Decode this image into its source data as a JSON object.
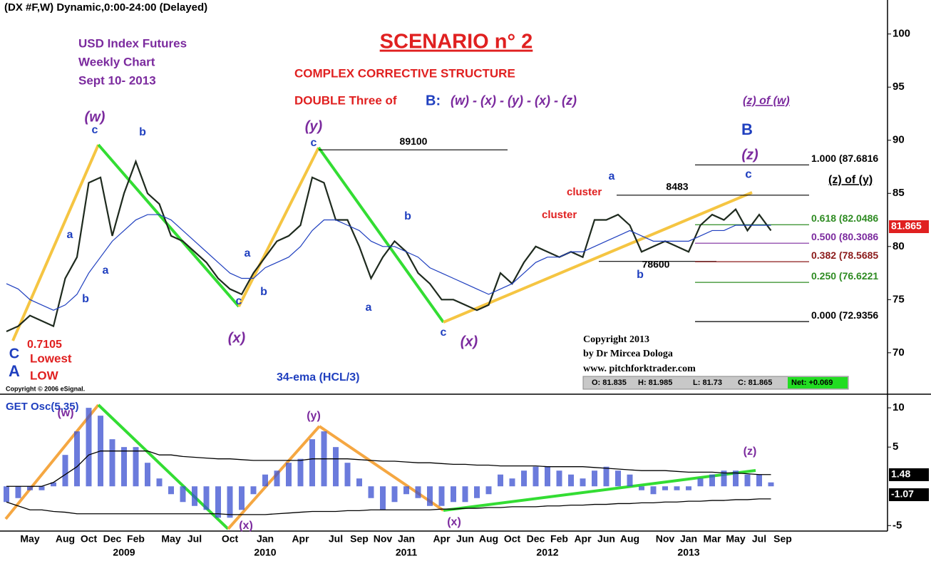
{
  "header": "(DX #F,W) Dynamic,0:00-24:00 (Delayed)",
  "copyright": "Copyright © 2006 eSignal.",
  "chart_data": [
    {
      "type": "line",
      "title": "SCENARIO n° 2",
      "categories": [
        null,
        null,
        "May",
        null,
        null,
        "Aug",
        null,
        "Oct",
        null,
        "Dec",
        null,
        "Feb",
        null,
        null,
        "May",
        null,
        "Jul",
        null,
        null,
        "Oct",
        null,
        null,
        "Jan",
        null,
        null,
        "Apr",
        null,
        null,
        "Jul",
        null,
        "Sep",
        null,
        "Nov",
        null,
        "Jan",
        null,
        null,
        "Apr",
        null,
        "Jun",
        null,
        "Aug",
        null,
        "Oct",
        null,
        "Dec",
        null,
        "Feb",
        null,
        "Apr",
        null,
        "Jun",
        null,
        "Aug",
        null,
        null,
        "Nov",
        null,
        "Jan",
        null,
        "Mar",
        null,
        "May",
        null,
        "Jul",
        null,
        "Sep"
      ],
      "category_groups": [
        null,
        null,
        null,
        null,
        null,
        null,
        null,
        null,
        null,
        null,
        "2009",
        null,
        null,
        null,
        null,
        null,
        null,
        null,
        null,
        null,
        null,
        null,
        "2010",
        null,
        null,
        null,
        null,
        null,
        null,
        null,
        null,
        null,
        null,
        null,
        "2011",
        null,
        null,
        null,
        null,
        null,
        null,
        null,
        null,
        null,
        null,
        null,
        "2012",
        null,
        null,
        null,
        null,
        null,
        null,
        null,
        null,
        null,
        null,
        null,
        "2013",
        null,
        null,
        null,
        null,
        null,
        null,
        null,
        null
      ],
      "series": [
        {
          "color": "#1e2a1e",
          "values": [
            72,
            72.5,
            73.5,
            73,
            72.5,
            77,
            79,
            86,
            86.5,
            81,
            85,
            88,
            85,
            84,
            81,
            80.5,
            79.5,
            78.5,
            77,
            76,
            75.5,
            77.5,
            79,
            80.5,
            81,
            82,
            86.5,
            86,
            82.5,
            82.5,
            80,
            77,
            79,
            80.5,
            79.5,
            77.5,
            76.5,
            75,
            75,
            74.5,
            74,
            74.5,
            77.5,
            76.5,
            78.5,
            80,
            79.5,
            79,
            79.5,
            79,
            82.5,
            82.5,
            83,
            82,
            79.5,
            80,
            80.5,
            80,
            79.5,
            82,
            83,
            82.5,
            83.5,
            81.5,
            83,
            81.5,
            null
          ]
        },
        {
          "name": "34-ema (HCL/3)",
          "color": "#1f3fbf",
          "values": [
            76.5,
            76,
            75,
            74.5,
            74,
            74.5,
            75.5,
            77.5,
            79,
            80.5,
            81.5,
            82.5,
            83,
            83,
            82.5,
            81.5,
            80.5,
            79.5,
            78.5,
            77.5,
            77,
            77,
            78,
            78.5,
            79,
            80,
            81.5,
            82.5,
            82.5,
            82,
            81.5,
            80.5,
            80,
            80,
            79.5,
            79,
            78,
            77.5,
            77,
            76.5,
            76,
            75.5,
            76,
            76.5,
            77.5,
            78.5,
            79,
            79,
            79.5,
            79.5,
            80,
            80.5,
            81,
            81.5,
            81,
            80.5,
            80.5,
            80.5,
            80.5,
            81,
            81.5,
            81.5,
            82,
            82,
            82,
            82,
            null
          ]
        }
      ],
      "ylim": [
        66.3,
        103.2
      ],
      "yticks": [
        100,
        95,
        90,
        85,
        80,
        75,
        70
      ],
      "last_value": 81.865,
      "levels": [
        {
          "value": 89.1,
          "label": "89100",
          "color": "#000000"
        },
        {
          "value": 84.83,
          "label": "8483",
          "color": "#000000"
        },
        {
          "value": 78.6,
          "label": "78600",
          "color": "#000000"
        }
      ],
      "fib_levels": [
        {
          "value": 87.6816,
          "label": "1.000 (87.6816",
          "color": "#000000"
        },
        {
          "value": 82.0486,
          "label": "0.618 (82.0486",
          "color": "#2e8b22"
        },
        {
          "value": 80.3086,
          "label": "0.500 (80.3086",
          "color": "#7b2a9e"
        },
        {
          "value": 78.5685,
          "label": "0.382 (78.5685",
          "color": "#8b1a1a"
        },
        {
          "value": 76.6221,
          "label": "0.250 (76.6221",
          "color": "#2e8b22"
        },
        {
          "value": 72.9356,
          "label": "0.000 (72.9356",
          "color": "#000000"
        }
      ],
      "ohlc": [
        "O: 81.835",
        "H: 81.985",
        "L: 81.73",
        "C: 81.865"
      ],
      "net": "Net: +0.069",
      "annotations": [
        "USD Index Futures",
        "Weekly Chart",
        "Sept 10- 2013",
        "COMPLEX CORRECTIVE STRUCTURE",
        "DOUBLE Three of",
        "B:",
        "(w) - (x) - (y) - (x) - (z)",
        "(z) of (w)",
        "B",
        "(z)",
        "c",
        "(z) of (y)",
        "cluster",
        "cluster",
        "a",
        "(w)",
        "c",
        "b",
        "a",
        "a",
        "b",
        "C",
        "A",
        "0.7105",
        "Lowest",
        "LOW",
        "(y)",
        "c",
        "a",
        "b",
        "c",
        "(x)",
        "b",
        "a",
        "c",
        "(x)",
        "b",
        "Copyright 2013",
        "by Dr Mircea Dologa",
        "www. pitchforktrader.com"
      ]
    },
    {
      "type": "bar",
      "title": "GET Osc(5,35)",
      "series": [
        {
          "color": "#3a4fd0",
          "values": [
            -2,
            -1.5,
            -0.5,
            -0.5,
            0.5,
            4,
            7,
            10,
            9,
            6,
            5,
            5,
            3,
            1,
            -1,
            -2,
            -2.5,
            -3,
            -4,
            -4,
            -3,
            -1,
            1.5,
            2,
            3,
            3.5,
            6,
            7,
            5,
            3,
            1,
            -1.5,
            -3,
            -2,
            -1,
            -1.5,
            -2.5,
            -2.5,
            -2,
            -2,
            -1.5,
            -1,
            1.5,
            1,
            2,
            2.5,
            2.5,
            2,
            1.5,
            1,
            2,
            2.5,
            2,
            1.5,
            -0.5,
            -1,
            -0.5,
            -0.5,
            -0.5,
            1,
            1.5,
            2,
            2,
            1.5,
            1.5,
            0.5,
            null
          ]
        },
        {
          "color": "#000000",
          "values": [
            0,
            0,
            0,
            0,
            0.5,
            1.5,
            2.5,
            4,
            4.5,
            4.5,
            4.5,
            4.5,
            4.5,
            4,
            4,
            3.8,
            3.7,
            3.6,
            3.5,
            3.5,
            3.4,
            3.3,
            3.3,
            3.3,
            3.3,
            3.3,
            3.5,
            3.5,
            3.5,
            3.5,
            3.4,
            3.3,
            3.2,
            3.2,
            3.1,
            3,
            3,
            2.9,
            2.8,
            2.8,
            2.7,
            2.7,
            2.6,
            2.6,
            2.6,
            2.6,
            2.5,
            2.5,
            2.5,
            2.5,
            2.4,
            2.3,
            2.2,
            2.1,
            2,
            2,
            2,
            1.9,
            1.8,
            1.8,
            1.8,
            1.7,
            1.7,
            1.6,
            1.5,
            1.5,
            null
          ]
        },
        {
          "color": "#000000",
          "values": [
            -2,
            -2.5,
            -3,
            -3,
            -3.2,
            -3.3,
            -3.5,
            -3.5,
            -3.5,
            -3.5,
            -3.5,
            -3.5,
            -3.5,
            -3.5,
            -3.5,
            -3.5,
            -3.5,
            -3.5,
            -3.5,
            -3.6,
            -3.6,
            -3.6,
            -3.6,
            -3.5,
            -3.4,
            -3.3,
            -3.2,
            -3.2,
            -3.2,
            -3.1,
            -3.1,
            -3,
            -3,
            -3,
            -3,
            -3,
            -3,
            -2.9,
            -2.9,
            -2.8,
            -2.8,
            -2.7,
            -2.7,
            -2.6,
            -2.6,
            -2.6,
            -2.5,
            -2.5,
            -2.4,
            -2.4,
            -2.3,
            -2.3,
            -2.2,
            -2.2,
            -2.1,
            -2.1,
            -2,
            -2,
            -1.9,
            -1.9,
            -1.8,
            -1.8,
            -1.7,
            -1.7,
            -1.6,
            -1.6,
            null
          ]
        }
      ],
      "ylim": [
        -5.7,
        11.1
      ],
      "yticks": [
        10,
        5,
        -5
      ],
      "markers": [
        1.48,
        -1.07
      ],
      "annotations": [
        "(w)",
        "(y)",
        "(x)",
        "(x)",
        "(z)"
      ]
    }
  ]
}
